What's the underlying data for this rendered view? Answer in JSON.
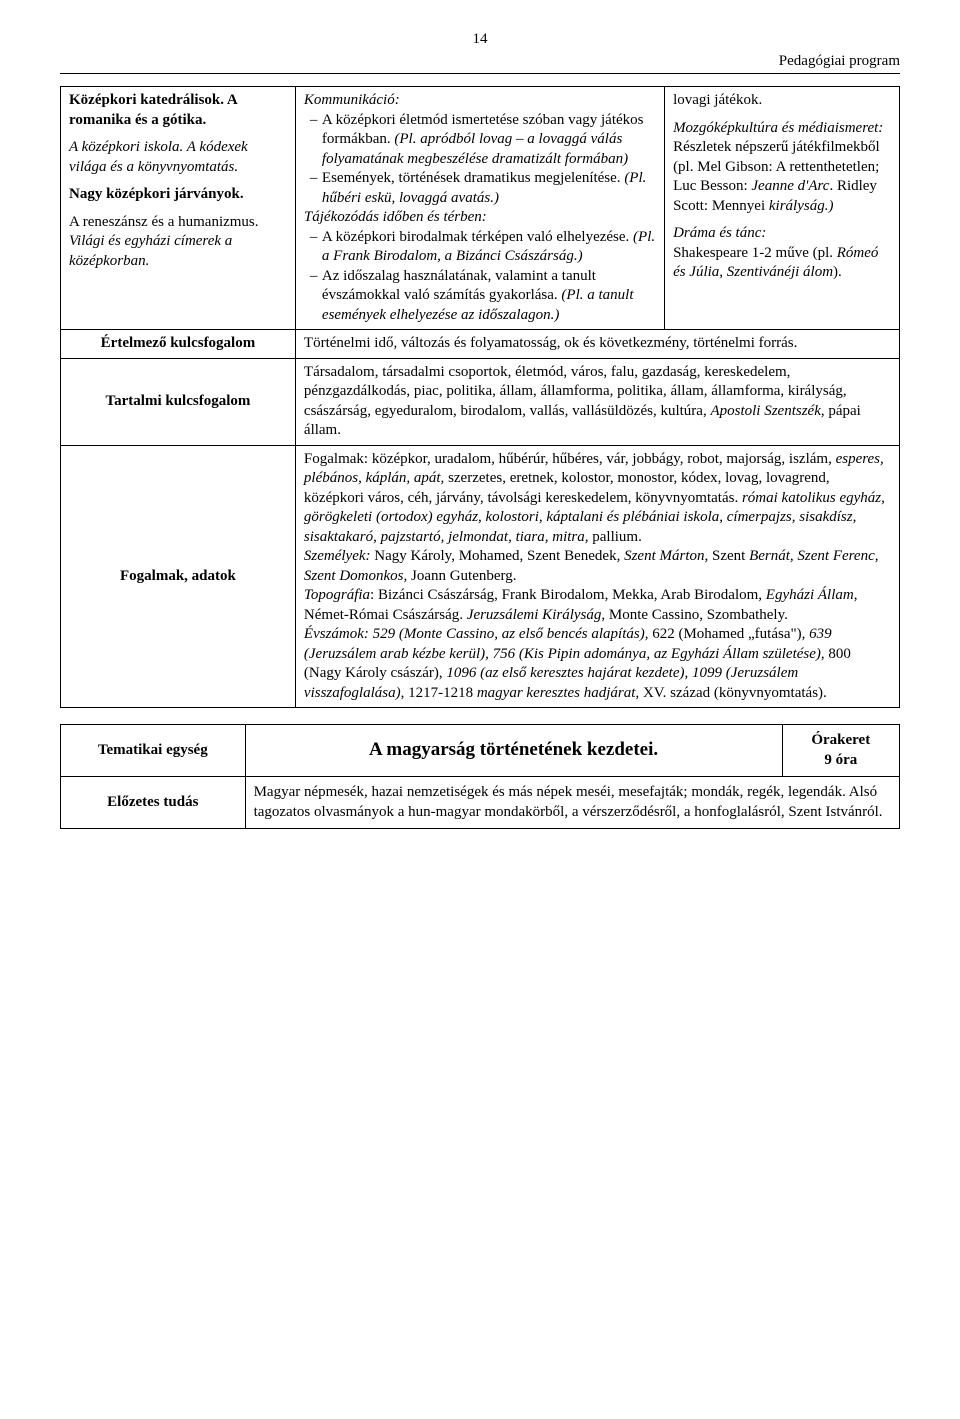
{
  "page_number": "14",
  "header": "Pedagógiai program",
  "table1": {
    "row1": {
      "left": {
        "p1_bold": "Középkori katedrálisok. A romanika és a gótika.",
        "p2": "A középkori iskola. A kódexek világa és a könyvnyomtatás.",
        "p2_italic_prefix": "A középkori iskola. A kódexek világa és a könyvnyomtatás.",
        "p3_bold": "Nagy középkori járványok.",
        "p4": "A reneszánsz és a humanizmus.",
        "p5_italic": "Világi és egyházi címerek a középkorban."
      },
      "mid": {
        "t1": "Kommunikáció:",
        "i1": "A középkori életmód ismertetése szóban vagy játékos formákban. (Pl. apródból lovag – a lovaggá válás folyamatának megbeszélése dramatizált formában)",
        "i1_pl": "(Pl. apródból lovag – a lovaggá válás folyamatának megbeszélése dramatizált formában)",
        "i2": "Események, történések dramatikus megjelenítése. ",
        "i2_pl": "(Pl. hűbéri eskü, lovaggá avatás.)",
        "t2": "Tájékozódás időben és térben:",
        "i3": "A középkori birodalmak térképen való elhelyezése. ",
        "i3_pl": "(Pl. a Frank Birodalom, a Bizánci Császárság.)",
        "i4": "Az időszalag használatának, valamint a tanult évszámokkal való számítás gyakorlása. ",
        "i4_pl": "(Pl. a tanult események elhelyezése az időszalagon.)"
      },
      "right": {
        "p1": "lovagi játékok.",
        "p2_label": "Mozgóképkultúra és médiaismeret:",
        "p2_body": "Részletek népszerű játékfilmekből (pl. Mel Gibson: A rettenthetetlen; Luc Besson: ",
        "p2_it1": "Jeanne d'Arc",
        "p2_mid": ". Ridley Scott: Mennyei ",
        "p2_it2": "királyság.)",
        "p3_label": "Dráma és tánc:",
        "p3_body": "Shakespeare 1-2 műve (pl. ",
        "p3_it": "Rómeó és Júlia, Szentivánéji álom",
        "p3_end": ")."
      }
    },
    "row2": {
      "label": "Értelmező kulcsfogalom",
      "content": "Történelmi idő, változás és folyamatosság, ok és következmény, történelmi forrás."
    },
    "row3": {
      "label": "Tartalmi kulcsfogalom",
      "content_a": "Társadalom, társadalmi csoportok, életmód, város, falu, gazdaság, kereskedelem, pénzgazdálkodás, piac, politika, állam, államforma, politika, állam, államforma, királyság, császárság, egyeduralom, birodalom, vallás, vallásüldözés, kultúra, ",
      "content_it": "Apostoli Szentszék",
      "content_b": ", pápai állam."
    },
    "row4": {
      "label": "Fogalmak, adatok",
      "fog_a": "Fogalmak: középkor, uradalom, hűbérúr, hűbéres, vár, jobbágy, robot, majorság, iszlám, ",
      "fog_it1": "esperes, plébános, káplán, apát,",
      "fog_b": " szerzetes, eretnek, kolostor, monostor, kódex, lovag, lovagrend, középkori város, céh, járvány, távolsági kereskedelem, könyvnyomtatás. ",
      "fog_it2": "római katolikus egyház, görögkeleti (ortodox) egyház, kolostori, káptalani és plébániai iskola, címerpajzs, sisakdísz, sisaktakaró, pajzstartó, jelmondat, tiara, mitra,",
      "fog_c": " pallium.",
      "szem_label": "Személyek:",
      "szem_a": " Nagy Károly, Mohamed, Szent Benedek",
      "szem_it": ", Szent Márton, ",
      "szem_b": "Szent ",
      "szem_it2": "Bernát, Szent Ferenc, Szent Domonkos,",
      "szem_c": " Joann Gutenberg.",
      "top_label": "Topográfia",
      "top_a": ": Bizánci Császárság, Frank Birodalom, Mekka, Arab Birodalom, ",
      "top_it1": "Egyházi Állam",
      "top_b": ", Német-Római Császárság. ",
      "top_it2": "Jeruzsálemi Királyság",
      "top_c": ", Monte Cassino, Szombathely.",
      "ev_label": "Évszámok: 529 (Monte Cassino, az első bencés alapítás)",
      "ev_a": ", 622 (Mohamed „futása\"), ",
      "ev_it1": "639 (Jeruzsálem arab kézbe kerül), 756 (Kis Pipin adománya, az Egyházi Állam születése)",
      "ev_b": ", 800 (Nagy Károly császár), ",
      "ev_it2": "1096 (az első keresztes hajárat kezdete), 1099 (Jeruzsálem visszafoglalása),",
      "ev_c": " 1217-1218 ",
      "ev_it3": "magyar keresztes hadjárat,",
      "ev_d": " XV. század (könyvnyomtatás)."
    }
  },
  "table2": {
    "row1": {
      "label": "Tematikai egység",
      "title": "A magyarság történetének kezdetei.",
      "ora_label": "Órakeret",
      "ora_val": "9 óra"
    },
    "row2": {
      "label": "Előzetes tudás",
      "content": "Magyar népmesék, hazai nemzetiségek és más népek meséi, mesefajták; mondák, regék, legendák. Alsó tagozatos olvasmányok a hun-magyar mondakörből, a vérszerződésről, a honfoglalásról, Szent Istvánról."
    }
  }
}
